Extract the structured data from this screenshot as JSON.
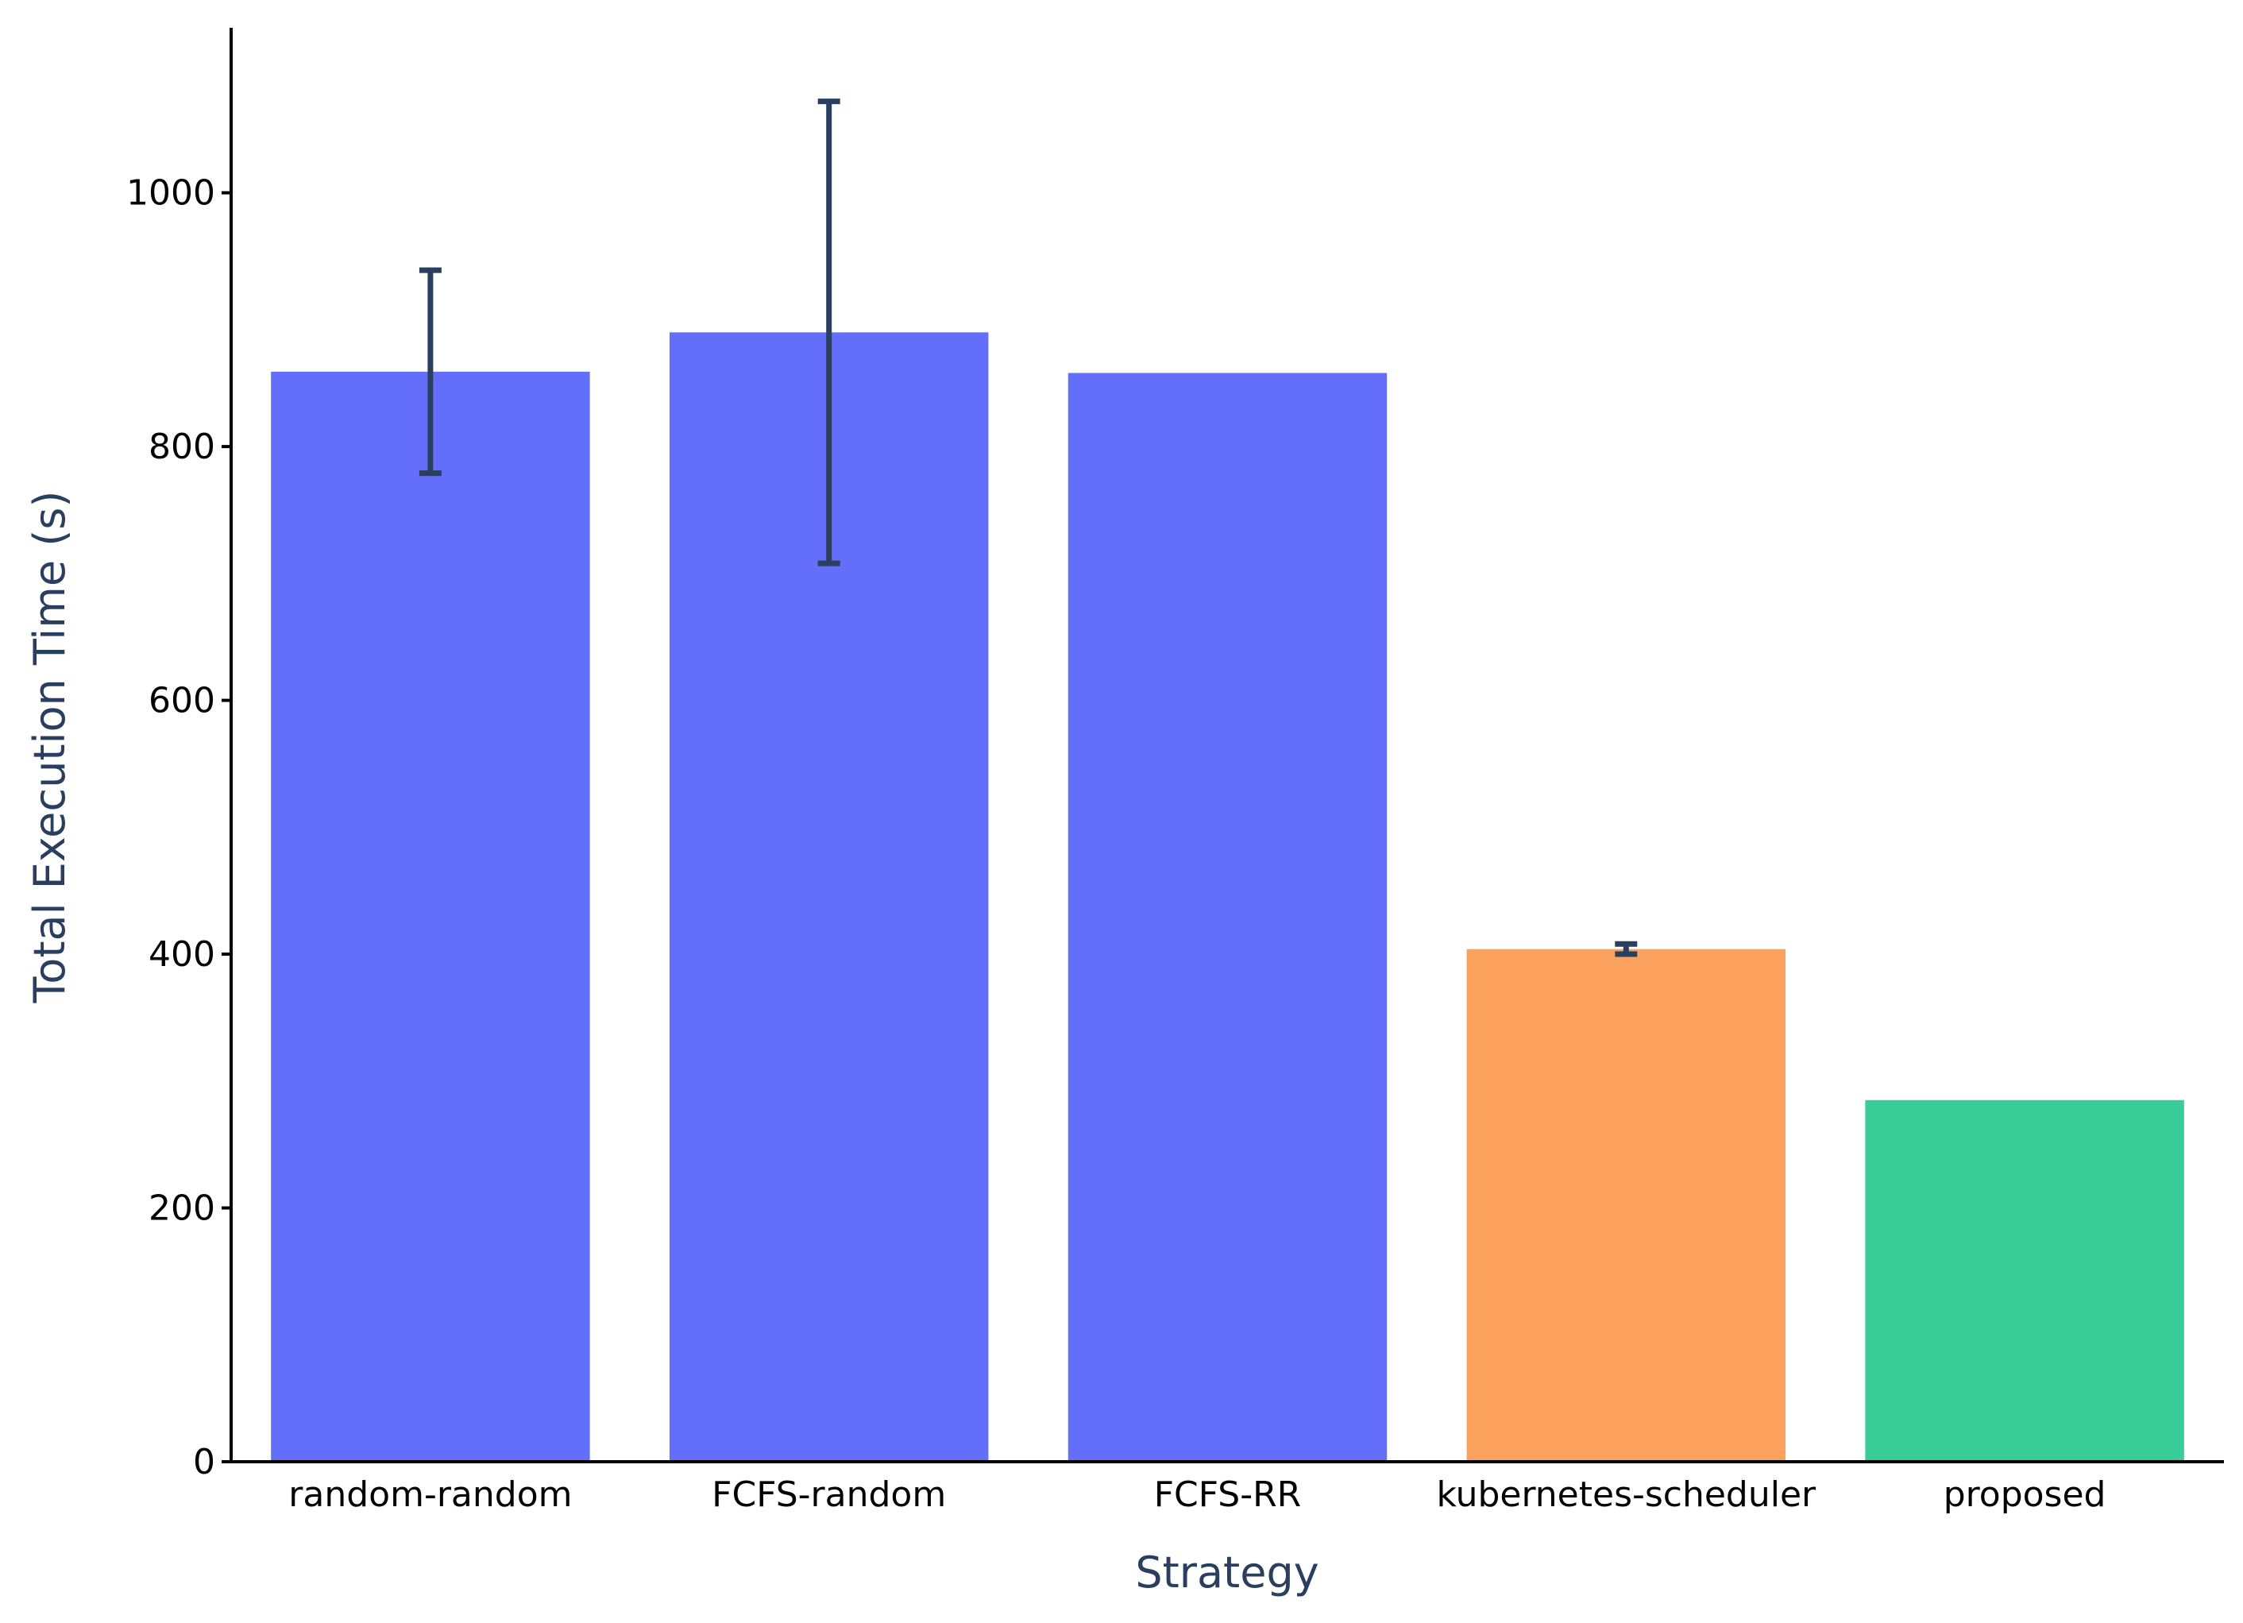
{
  "chart_data": {
    "type": "bar",
    "title": "",
    "xlabel": "Strategy",
    "ylabel": "Total Execution Time (s)",
    "ylim": [
      0,
      1130
    ],
    "yticks": [
      0,
      200,
      400,
      600,
      800,
      1000
    ],
    "grid": false,
    "legend": "none",
    "categories": [
      "random-random",
      "FCFS-random",
      "FCFS-RR",
      "kubernetes-scheduler",
      "proposed"
    ],
    "values": [
      859,
      890,
      858,
      404,
      285
    ],
    "error_high": [
      939,
      1072,
      null,
      408,
      null
    ],
    "error_low": [
      779,
      708,
      null,
      400,
      null
    ],
    "colors": [
      "#636efa",
      "#636efa",
      "#636efa",
      "#fca25e",
      "#37cc98"
    ],
    "error_bar_color": "#2a3f5f",
    "axis_color": "#000000"
  }
}
